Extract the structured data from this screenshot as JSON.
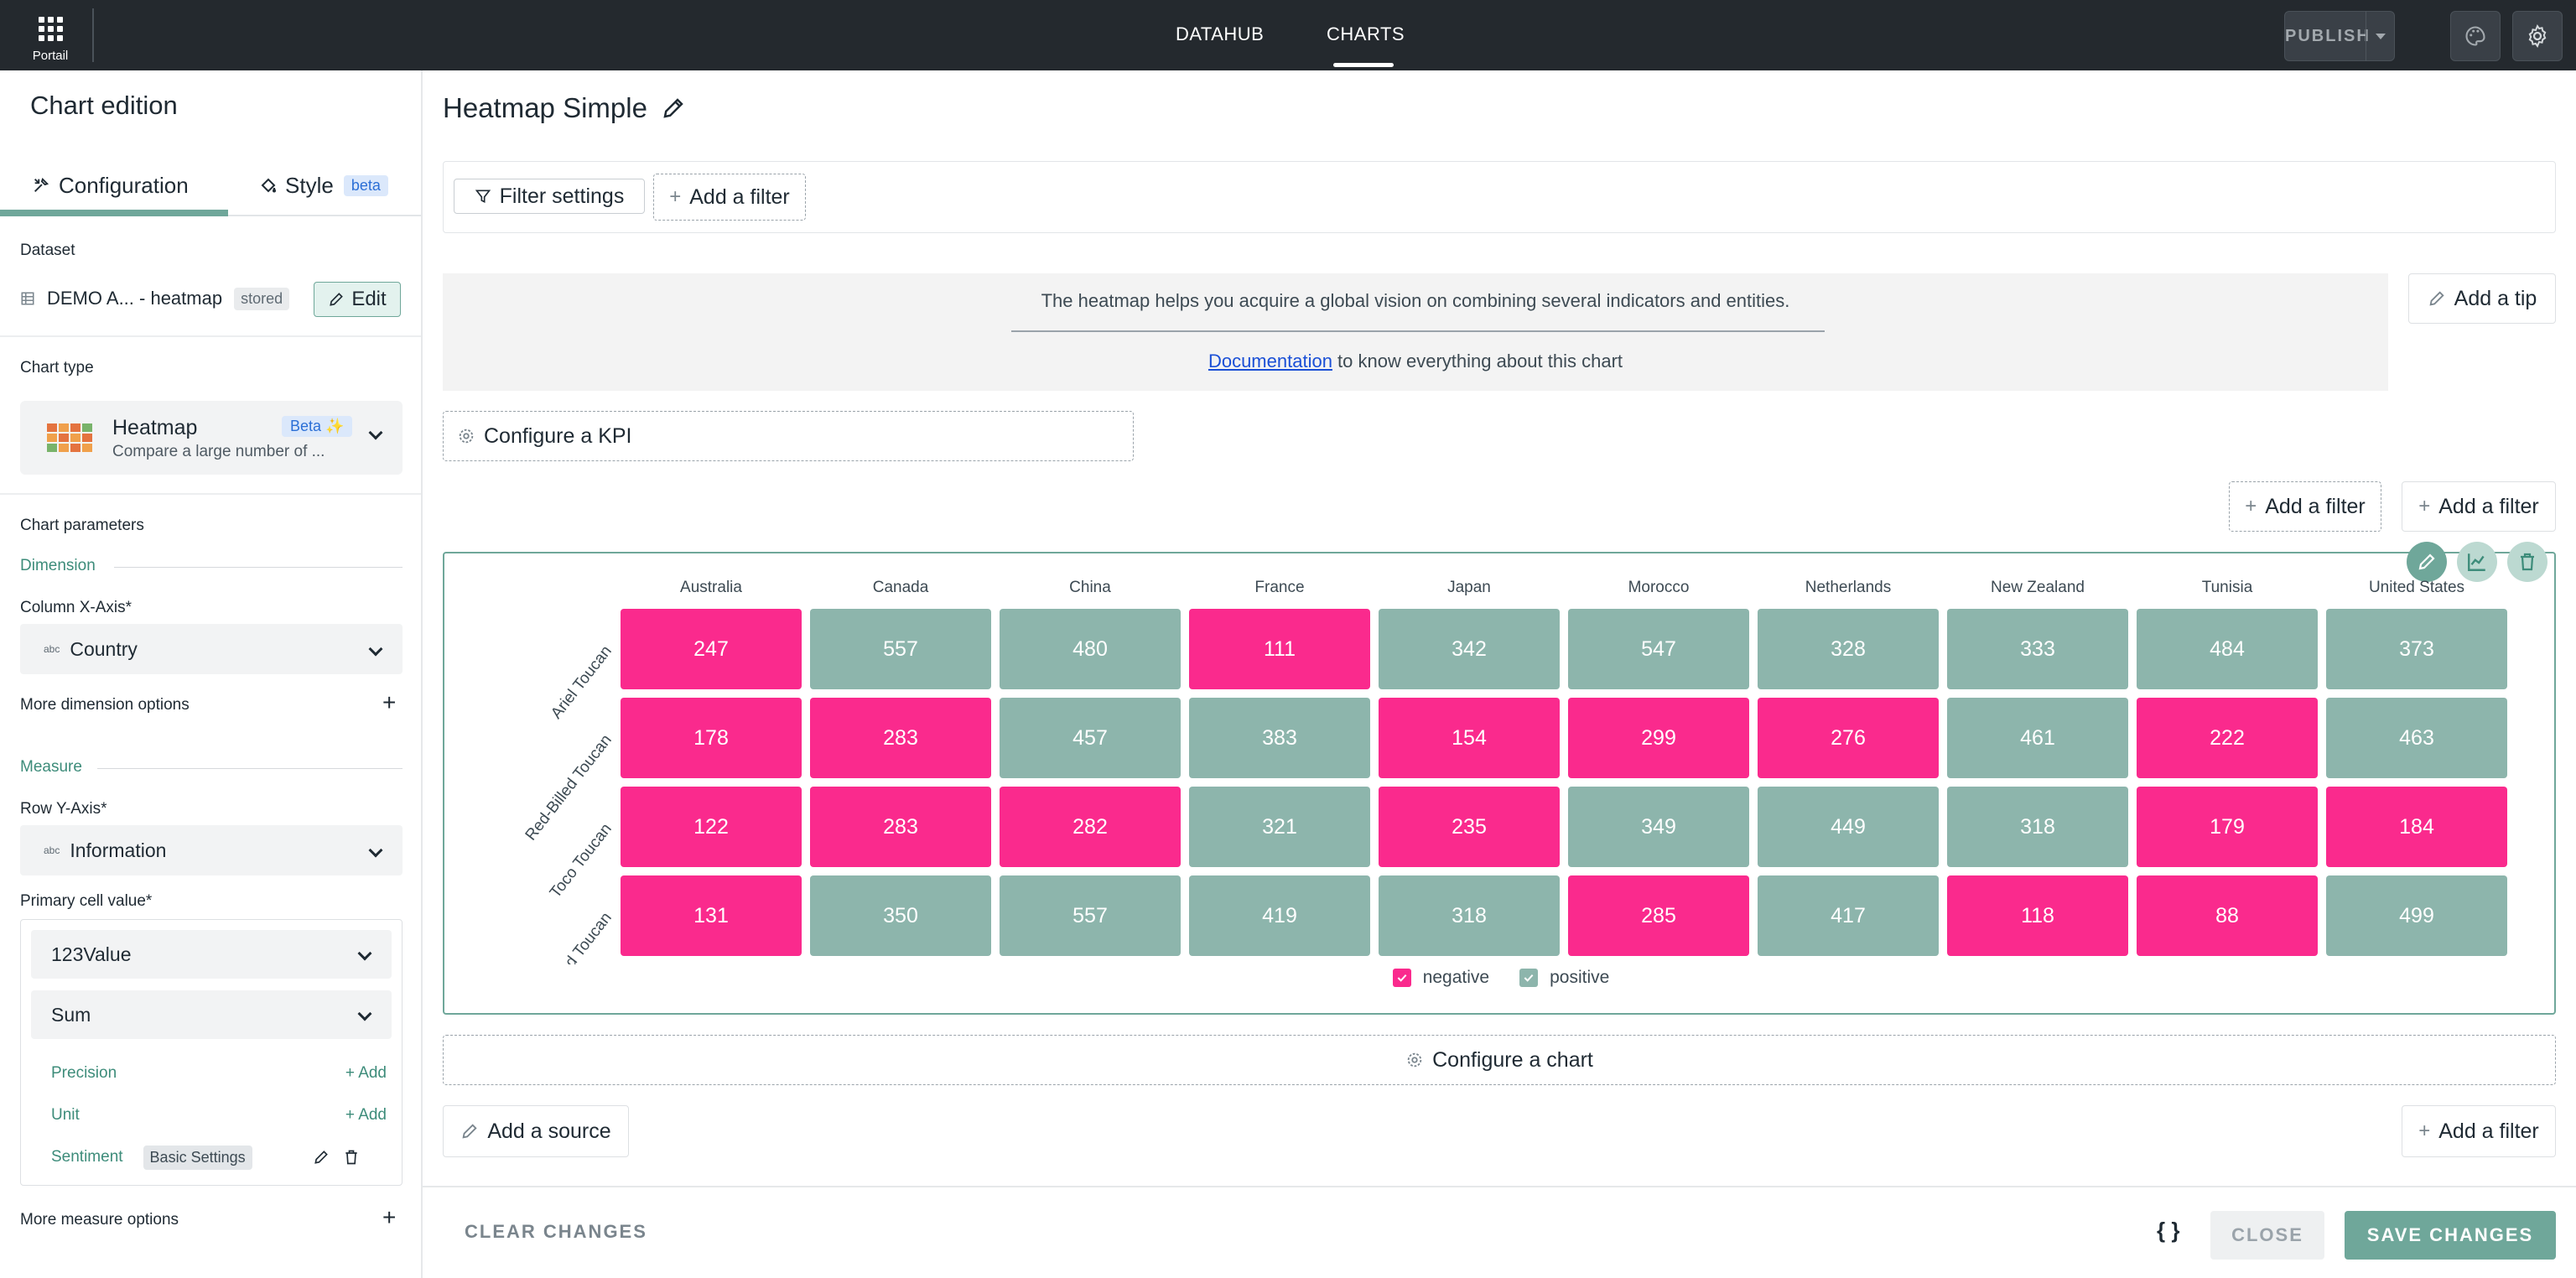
{
  "topbar": {
    "portal_label": "Portail",
    "nav": [
      "DATAHUB",
      "CHARTS"
    ],
    "active_nav": "CHARTS",
    "publish_label": "PUBLISH"
  },
  "sidebar": {
    "title": "Chart edition",
    "tabs": {
      "configuration": "Configuration",
      "style": "Style",
      "style_badge": "beta"
    },
    "dataset": {
      "label": "Dataset",
      "name": "DEMO A... - heatmap",
      "badge": "stored",
      "edit_label": "Edit"
    },
    "chart_type": {
      "label": "Chart type",
      "name": "Heatmap",
      "badge": "Beta ✨",
      "description": "Compare a large number of ..."
    },
    "parameters_label": "Chart parameters",
    "dimension": {
      "section": "Dimension",
      "x_axis_label": "Column X-Axis*",
      "x_axis_value": "Country",
      "more_options": "More dimension options"
    },
    "measure": {
      "section": "Measure",
      "y_axis_label": "Row Y-Axis*",
      "y_axis_value": "Information",
      "primary_label": "Primary cell value*",
      "primary_value": "Value",
      "aggregation": "Sum",
      "precision_label": "Precision",
      "unit_label": "Unit",
      "add_label": "Add",
      "sentiment_label": "Sentiment",
      "sentiment_value": "Basic Settings",
      "more_options": "More measure options"
    }
  },
  "main": {
    "title": "Heatmap Simple",
    "filter_settings": "Filter settings",
    "add_filter": "Add a filter",
    "add_tip": "Add a tip",
    "info_text": "The heatmap helps you acquire a global vision on combining several indicators and entities.",
    "doc_link": "Documentation",
    "doc_suffix": " to know everything about this chart",
    "configure_kpi": "Configure a KPI",
    "configure_chart": "Configure a chart",
    "add_source": "Add a source"
  },
  "colors": {
    "negative": "#fa2a8d",
    "positive": "#8db5ac",
    "accent": "#6fa79a"
  },
  "chart_data": {
    "type": "heatmap",
    "x": [
      "Australia",
      "Canada",
      "China",
      "France",
      "Japan",
      "Morocco",
      "Netherlands",
      "New Zealand",
      "Tunisia",
      "United States"
    ],
    "y": [
      "Ariel Toucan",
      "Red-Billed Toucan",
      "Toco Toucan",
      "Keel-Billed Toucan"
    ],
    "values": [
      [
        247,
        557,
        480,
        111,
        342,
        547,
        328,
        333,
        484,
        373
      ],
      [
        178,
        283,
        457,
        383,
        154,
        299,
        276,
        461,
        222,
        463
      ],
      [
        122,
        283,
        282,
        321,
        235,
        349,
        449,
        318,
        179,
        184
      ],
      [
        131,
        350,
        557,
        419,
        318,
        285,
        417,
        118,
        88,
        499
      ]
    ],
    "sentiment": [
      [
        "negative",
        "positive",
        "positive",
        "negative",
        "positive",
        "positive",
        "positive",
        "positive",
        "positive",
        "positive"
      ],
      [
        "negative",
        "negative",
        "positive",
        "positive",
        "negative",
        "negative",
        "negative",
        "positive",
        "negative",
        "positive"
      ],
      [
        "negative",
        "negative",
        "negative",
        "positive",
        "negative",
        "positive",
        "positive",
        "positive",
        "negative",
        "negative"
      ],
      [
        "negative",
        "positive",
        "positive",
        "positive",
        "positive",
        "negative",
        "positive",
        "negative",
        "negative",
        "positive"
      ]
    ],
    "legend": [
      "negative",
      "positive"
    ]
  },
  "footer": {
    "clear_label": "CLEAR CHANGES",
    "json_label": "{ }",
    "close_label": "CLOSE",
    "save_label": "SAVE CHANGES"
  }
}
